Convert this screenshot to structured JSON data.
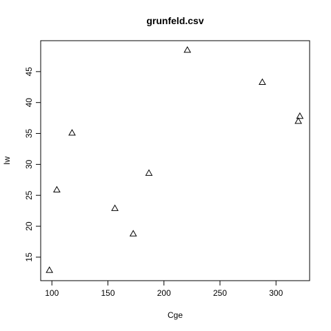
{
  "chart_data": {
    "type": "scatter",
    "title": "grunfeld.csv",
    "xlabel": "Cge",
    "ylabel": "Iw",
    "xlim": [
      90,
      330
    ],
    "ylim": [
      11.2,
      50
    ],
    "xticks": [
      100,
      150,
      200,
      250,
      300
    ],
    "yticks": [
      15,
      20,
      25,
      30,
      35,
      40,
      45
    ],
    "marker": "triangle-open",
    "grid": false,
    "points": [
      {
        "x": 97.8,
        "y": 12.9
      },
      {
        "x": 104.4,
        "y": 25.9
      },
      {
        "x": 118.0,
        "y": 35.1
      },
      {
        "x": 156.2,
        "y": 22.9
      },
      {
        "x": 172.6,
        "y": 18.8
      },
      {
        "x": 186.6,
        "y": 28.6
      },
      {
        "x": 220.9,
        "y": 48.5
      },
      {
        "x": 287.8,
        "y": 43.3
      },
      {
        "x": 319.9,
        "y": 37.0
      },
      {
        "x": 321.3,
        "y": 37.8
      }
    ]
  }
}
